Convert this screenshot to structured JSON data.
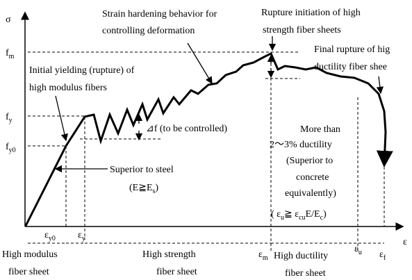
{
  "axes": {
    "y_label": "σ",
    "x_label": "ε"
  },
  "stress_levels": {
    "fm": [
      {
        "text": "f"
      },
      {
        "sub": "m"
      }
    ],
    "fy": [
      {
        "text": "f"
      },
      {
        "sub": "y"
      }
    ],
    "fy0": [
      {
        "text": "f"
      },
      {
        "sub": "y0"
      }
    ]
  },
  "strain_levels": {
    "ey0": [
      {
        "text": "ε"
      },
      {
        "sub": "y0"
      }
    ],
    "ey": [
      {
        "text": "ε"
      },
      {
        "sub": "y"
      }
    ],
    "em": [
      {
        "text": "ε"
      },
      {
        "sub": "m"
      }
    ],
    "eu": [
      {
        "text": "ε"
      },
      {
        "sub": "u"
      }
    ],
    "ef": [
      {
        "text": "ε"
      },
      {
        "sub": "f"
      }
    ]
  },
  "annotations": {
    "strain_hardening": [
      "Strain hardening behavior for",
      "controlling deformation"
    ],
    "rupture_initiation": [
      "Rupture initiation of high",
      "strength fiber sheets"
    ],
    "final_rupture": [
      "Final rupture of hig",
      "ductility fiber shee"
    ],
    "initial_yielding": [
      "Initial yielding (rupture) of",
      "high modulus fibers"
    ],
    "delta_f": "⊿f (to be controlled)",
    "superior_steel": [
      "Superior to steel",
      [
        {
          "text": "(E≧E"
        },
        {
          "sub": "s"
        },
        {
          "text": ")"
        }
      ]
    ],
    "ductility": [
      "More than",
      "2～3% ductility",
      "(Superior to",
      "concrete",
      "equivalently)",
      [
        {
          "text": "( ε"
        },
        {
          "sub": "u"
        },
        {
          "text": "≧ ε"
        },
        {
          "sub": "cu"
        },
        {
          "text": "E/E"
        },
        {
          "sub": "c"
        },
        {
          "text": ")"
        }
      ]
    ]
  },
  "regions": {
    "high_modulus": [
      "High modulus",
      "fiber sheet"
    ],
    "high_strength": [
      "High strength",
      "fiber sheet"
    ],
    "high_ductility": [
      "High ductility",
      "fiber sheet"
    ]
  }
}
